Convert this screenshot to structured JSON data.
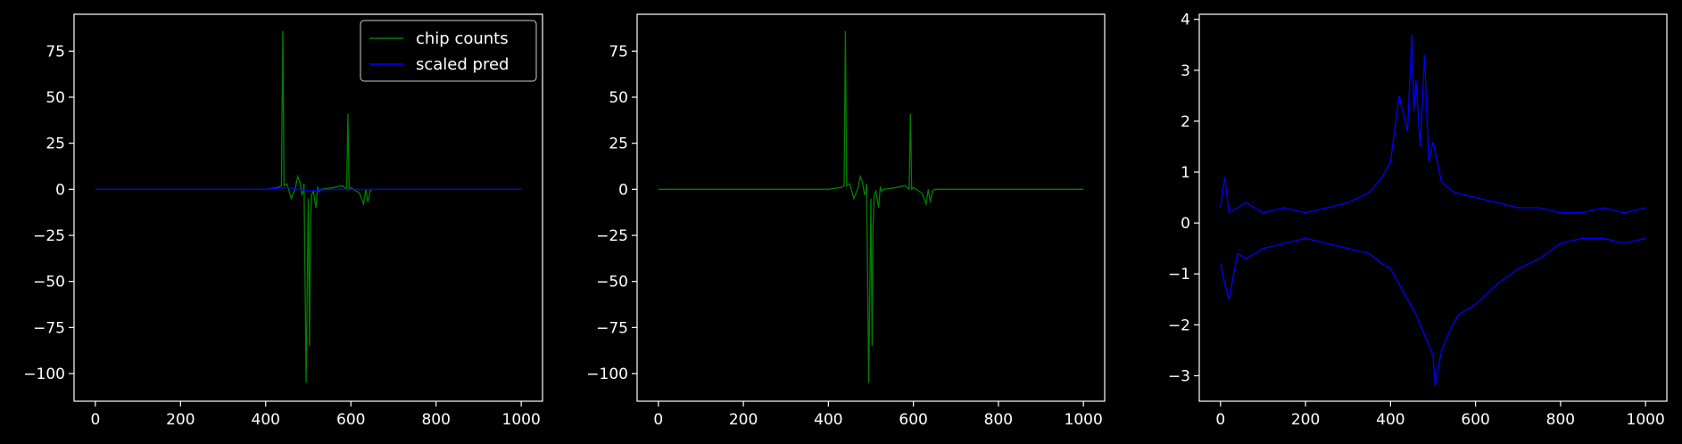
{
  "figure": {
    "background": "#000000",
    "axes_color": "#ffffff"
  },
  "chart_data": [
    {
      "type": "line",
      "title": "",
      "xlabel": "",
      "ylabel": "",
      "xlim": [
        -50,
        1050
      ],
      "ylim": [
        -115,
        95
      ],
      "xticks": [
        0,
        200,
        400,
        600,
        800,
        1000
      ],
      "yticks": [
        75,
        50,
        25,
        0,
        -25,
        -50,
        -75,
        -100
      ],
      "grid": false,
      "legend": {
        "position": "top-right",
        "entries": [
          {
            "name": "chip counts",
            "color": "#008000"
          },
          {
            "name": "scaled pred",
            "color": "#0000ff"
          }
        ]
      },
      "series": [
        {
          "name": "chip counts",
          "color": "#008000",
          "x": [
            0,
            100,
            200,
            300,
            400,
            430,
            437,
            440,
            443,
            450,
            460,
            470,
            475,
            480,
            485,
            488,
            490,
            495,
            500,
            503,
            505,
            508,
            512,
            518,
            522,
            526,
            530,
            560,
            580,
            590,
            593,
            596,
            600,
            620,
            630,
            635,
            640,
            645,
            650,
            700,
            800,
            900,
            1000
          ],
          "y": [
            0,
            0,
            0,
            0,
            0,
            1,
            2,
            86,
            2,
            3,
            -5,
            1,
            7,
            4,
            -3,
            -1,
            3,
            -105,
            -5,
            -85,
            -20,
            -3,
            -1,
            -10,
            1,
            -1,
            0,
            1,
            2,
            0,
            41,
            0,
            1,
            -2,
            -8,
            0,
            -7,
            -1,
            0,
            0,
            0,
            0,
            0
          ]
        },
        {
          "name": "scaled pred",
          "color": "#0000ff",
          "x": [
            0,
            100,
            200,
            300,
            400,
            450,
            500,
            550,
            600,
            700,
            800,
            900,
            1000
          ],
          "y": [
            0,
            0,
            0,
            0,
            0,
            1,
            -1,
            0,
            0,
            0,
            0,
            0,
            0
          ]
        }
      ]
    },
    {
      "type": "line",
      "title": "",
      "xlabel": "",
      "ylabel": "",
      "xlim": [
        -50,
        1050
      ],
      "ylim": [
        -115,
        95
      ],
      "xticks": [
        0,
        200,
        400,
        600,
        800,
        1000
      ],
      "yticks": [
        75,
        50,
        25,
        0,
        -25,
        -50,
        -75,
        -100
      ],
      "grid": false,
      "series": [
        {
          "color": "#008000",
          "x": [
            0,
            100,
            200,
            300,
            400,
            430,
            437,
            440,
            443,
            450,
            460,
            470,
            475,
            480,
            485,
            488,
            490,
            495,
            500,
            503,
            505,
            508,
            512,
            518,
            522,
            526,
            530,
            560,
            580,
            590,
            593,
            596,
            600,
            620,
            630,
            635,
            640,
            645,
            650,
            700,
            800,
            900,
            1000
          ],
          "y": [
            0,
            0,
            0,
            0,
            0,
            1,
            2,
            86,
            2,
            3,
            -5,
            1,
            7,
            4,
            -3,
            -1,
            3,
            -105,
            -5,
            -85,
            -20,
            -3,
            -1,
            -10,
            1,
            -1,
            0,
            1,
            2,
            0,
            41,
            0,
            1,
            -2,
            -8,
            0,
            -7,
            -1,
            0,
            0,
            0,
            0,
            0
          ]
        }
      ]
    },
    {
      "type": "line",
      "title": "",
      "xlabel": "",
      "ylabel": "",
      "xlim": [
        -50,
        1050
      ],
      "ylim": [
        -3.5,
        4.1
      ],
      "xticks": [
        0,
        200,
        400,
        600,
        800,
        1000
      ],
      "yticks": [
        4,
        3,
        2,
        1,
        0,
        -1,
        -2,
        -3
      ],
      "grid": false,
      "series": [
        {
          "color": "#0000ff",
          "x": [
            0,
            10,
            20,
            40,
            60,
            100,
            150,
            200,
            250,
            300,
            350,
            380,
            400,
            420,
            440,
            450,
            455,
            460,
            470,
            480,
            490,
            500,
            520,
            550,
            600,
            650,
            700,
            750,
            800,
            850,
            900,
            950,
            1000
          ],
          "y": [
            0.3,
            0.9,
            0.2,
            0.3,
            0.4,
            0.2,
            0.3,
            0.2,
            0.3,
            0.4,
            0.6,
            0.9,
            1.2,
            2.5,
            1.8,
            3.7,
            2.2,
            2.8,
            1.5,
            3.3,
            1.2,
            1.6,
            0.8,
            0.6,
            0.5,
            0.4,
            0.3,
            0.3,
            0.2,
            0.2,
            0.3,
            0.2,
            0.3
          ]
        },
        {
          "color": "#0000ff",
          "x": [
            0,
            10,
            20,
            40,
            60,
            100,
            150,
            200,
            250,
            300,
            350,
            380,
            400,
            420,
            440,
            460,
            480,
            500,
            505,
            520,
            540,
            560,
            600,
            650,
            700,
            750,
            800,
            850,
            900,
            950,
            1000
          ],
          "y": [
            -0.8,
            -1.2,
            -1.5,
            -0.6,
            -0.7,
            -0.5,
            -0.4,
            -0.3,
            -0.4,
            -0.5,
            -0.6,
            -0.8,
            -0.9,
            -1.2,
            -1.5,
            -1.8,
            -2.2,
            -2.6,
            -3.2,
            -2.5,
            -2.1,
            -1.8,
            -1.6,
            -1.2,
            -0.9,
            -0.7,
            -0.4,
            -0.3,
            -0.3,
            -0.4,
            -0.3
          ]
        }
      ]
    }
  ]
}
